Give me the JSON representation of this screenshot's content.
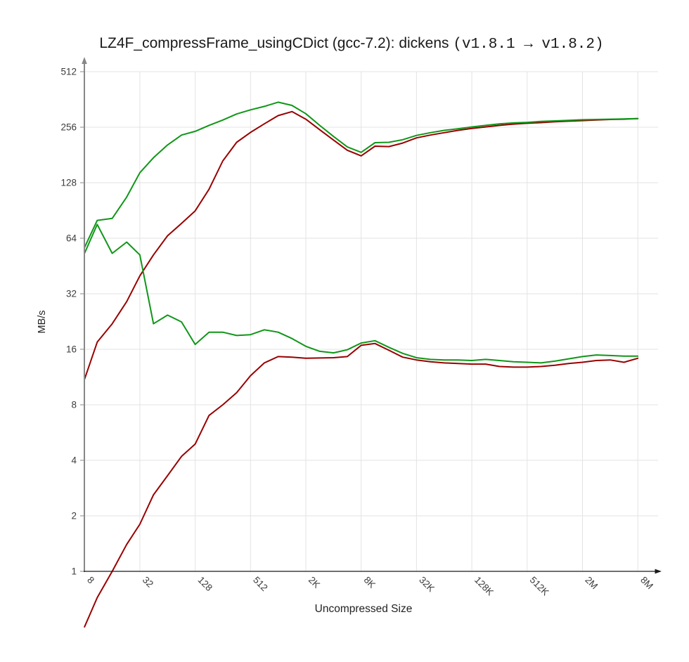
{
  "title": {
    "prefix": "LZ4F_compressFrame_usingCDict (gcc-7.2): dickens ",
    "versions": "(v1.8.1 → v1.8.2)"
  },
  "colors": {
    "green_series": "#109618",
    "red_series": "#990000",
    "gridline": "#e3e3e3",
    "y_axis": "#878787",
    "x_axis": "#1a1a1a",
    "tick_label": "#3c3c3c",
    "axis_title": "#222222",
    "title_text": "#1a1a1a",
    "background": "#ffffff"
  },
  "chart_data": {
    "type": "line",
    "title": "LZ4F_compressFrame_usingCDict (gcc-7.2): dickens (v1.8.1 → v1.8.2)",
    "xlabel": "Uncompressed Size",
    "ylabel": "MB/s",
    "x_scale": "log2",
    "y_scale": "log2",
    "xlim": [
      8,
      8388608
    ],
    "ylim": [
      1,
      512
    ],
    "grid": true,
    "legend": "none",
    "x_ticks": [
      {
        "label": "8",
        "value": 8
      },
      {
        "label": "32",
        "value": 32
      },
      {
        "label": "128",
        "value": 128
      },
      {
        "label": "512",
        "value": 512
      },
      {
        "label": "2K",
        "value": 2048
      },
      {
        "label": "8K",
        "value": 8192
      },
      {
        "label": "32K",
        "value": 32768
      },
      {
        "label": "128K",
        "value": 131072
      },
      {
        "label": "512K",
        "value": 524288
      },
      {
        "label": "2M",
        "value": 2097152
      },
      {
        "label": "8M",
        "value": 8388608
      }
    ],
    "y_ticks": [
      {
        "label": "1",
        "value": 1
      },
      {
        "label": "2",
        "value": 2
      },
      {
        "label": "4",
        "value": 4
      },
      {
        "label": "8",
        "value": 8
      },
      {
        "label": "16",
        "value": 16
      },
      {
        "label": "32",
        "value": 32
      },
      {
        "label": "64",
        "value": 64
      },
      {
        "label": "128",
        "value": 128
      },
      {
        "label": "256",
        "value": 256
      },
      {
        "label": "512",
        "value": 512
      }
    ],
    "x": [
      8,
      11,
      16,
      23,
      32,
      45,
      64,
      91,
      128,
      181,
      256,
      362,
      512,
      724,
      1024,
      1448,
      2048,
      2896,
      4096,
      5793,
      8192,
      11585,
      16384,
      23170,
      32768,
      46341,
      65536,
      92682,
      131072,
      185363,
      262144,
      370727,
      524288,
      741455,
      1048576,
      1482910,
      2097152,
      2965820,
      4194304,
      5931641,
      8388608
    ],
    "series": [
      {
        "name": "red-upper",
        "color": "#990000",
        "values": [
          11,
          17.5,
          22,
          29,
          40,
          52,
          66,
          77,
          90,
          118,
          168,
          212,
          240,
          267,
          296,
          311,
          283,
          248,
          218,
          192,
          179,
          202,
          201,
          210,
          224,
          232,
          239,
          246,
          252,
          257,
          262,
          266,
          269,
          271,
          274,
          276,
          278,
          280,
          282,
          283,
          285
        ]
      },
      {
        "name": "green-upper",
        "color": "#109618",
        "values": [
          57,
          80,
          82,
          107,
          145,
          175,
          205,
          232,
          243,
          262,
          280,
          302,
          318,
          332,
          350,
          336,
          303,
          262,
          228,
          200,
          187,
          211,
          212,
          219,
          231,
          239,
          246,
          251,
          257,
          262,
          267,
          270,
          272,
          275,
          277,
          279,
          281,
          282,
          283,
          284,
          285
        ]
      },
      {
        "name": "red-lower",
        "color": "#990000",
        "values": [
          0.5,
          0.72,
          1.0,
          1.4,
          1.8,
          2.6,
          3.3,
          4.2,
          4.9,
          7.0,
          8.0,
          9.3,
          11.5,
          13.5,
          14.6,
          14.5,
          14.3,
          14.35,
          14.4,
          14.6,
          16.8,
          17.2,
          15.8,
          14.5,
          14.0,
          13.7,
          13.5,
          13.4,
          13.3,
          13.3,
          12.9,
          12.8,
          12.8,
          12.9,
          13.1,
          13.4,
          13.6,
          13.9,
          14.0,
          13.6,
          14.3
        ]
      },
      {
        "name": "green-lower",
        "color": "#109618",
        "values": [
          53,
          76,
          53,
          61,
          52,
          22,
          24.5,
          22.5,
          17,
          19.8,
          19.8,
          19,
          19.2,
          20.4,
          19.8,
          18.3,
          16.6,
          15.6,
          15.3,
          15.9,
          17.3,
          17.8,
          16.4,
          15.2,
          14.4,
          14.1,
          14.0,
          14.0,
          13.9,
          14.1,
          13.9,
          13.7,
          13.6,
          13.5,
          13.8,
          14.2,
          14.6,
          14.9,
          14.8,
          14.7,
          14.7
        ]
      }
    ]
  }
}
